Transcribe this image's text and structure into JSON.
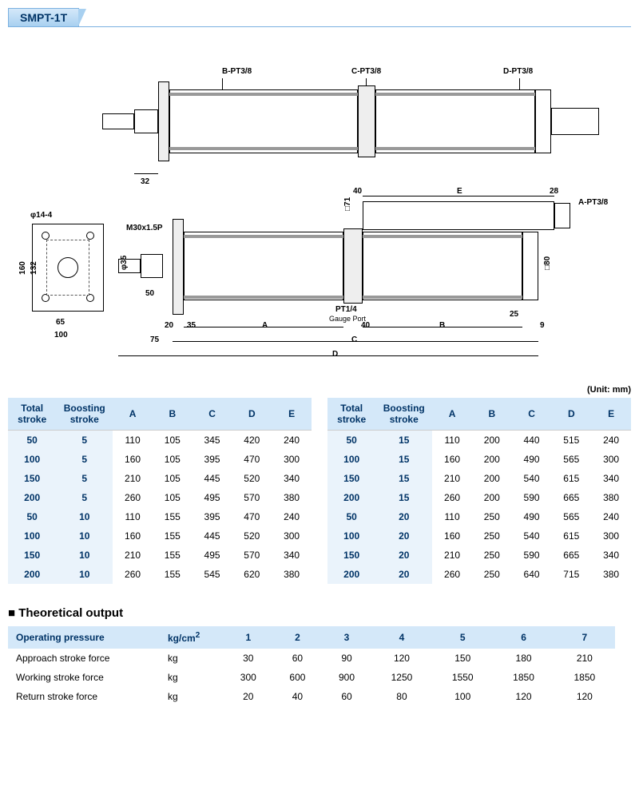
{
  "title": "SMPT-1T",
  "diagram": {
    "labels": {
      "b_port": "B-PT3/8",
      "c_port": "C-PT3/8",
      "d_port": "D-PT3/8",
      "a_port": "A-PT3/8",
      "gauge": "PT1/4",
      "gauge_sub": "Gauge Port",
      "thread": "M30x1.5P",
      "phi14": "φ14-4",
      "phi35": "φ35",
      "sq71": "□71",
      "sq80": "□80"
    },
    "dims": {
      "d32": "32",
      "d40a": "40",
      "d28": "28",
      "d40b": "40",
      "d25": "25",
      "d9": "9",
      "d20": "20",
      "d35": "35",
      "d50": "50",
      "d75": "75",
      "d65": "65",
      "d100": "100",
      "d160": "160",
      "d132": "132",
      "A": "A",
      "B": "B",
      "C": "C",
      "D": "D",
      "E": "E"
    }
  },
  "unit_label": "(Unit: mm)",
  "dim_headers": [
    "Total stroke",
    "Boosting stroke",
    "A",
    "B",
    "C",
    "D",
    "E"
  ],
  "dims_left": [
    [
      "50",
      "5",
      "110",
      "105",
      "345",
      "420",
      "240"
    ],
    [
      "100",
      "5",
      "160",
      "105",
      "395",
      "470",
      "300"
    ],
    [
      "150",
      "5",
      "210",
      "105",
      "445",
      "520",
      "340"
    ],
    [
      "200",
      "5",
      "260",
      "105",
      "495",
      "570",
      "380"
    ],
    [
      "50",
      "10",
      "110",
      "155",
      "395",
      "470",
      "240"
    ],
    [
      "100",
      "10",
      "160",
      "155",
      "445",
      "520",
      "300"
    ],
    [
      "150",
      "10",
      "210",
      "155",
      "495",
      "570",
      "340"
    ],
    [
      "200",
      "10",
      "260",
      "155",
      "545",
      "620",
      "380"
    ]
  ],
  "dims_right": [
    [
      "50",
      "15",
      "110",
      "200",
      "440",
      "515",
      "240"
    ],
    [
      "100",
      "15",
      "160",
      "200",
      "490",
      "565",
      "300"
    ],
    [
      "150",
      "15",
      "210",
      "200",
      "540",
      "615",
      "340"
    ],
    [
      "200",
      "15",
      "260",
      "200",
      "590",
      "665",
      "380"
    ],
    [
      "50",
      "20",
      "110",
      "250",
      "490",
      "565",
      "240"
    ],
    [
      "100",
      "20",
      "160",
      "250",
      "540",
      "615",
      "300"
    ],
    [
      "150",
      "20",
      "210",
      "250",
      "590",
      "665",
      "340"
    ],
    [
      "200",
      "20",
      "260",
      "250",
      "640",
      "715",
      "380"
    ]
  ],
  "output_section_title": "Theoretical output",
  "output_pressure_label": "Operating pressure",
  "output_pressure_unit": "kg/cm²",
  "output_cols": [
    "1",
    "2",
    "3",
    "4",
    "5",
    "6",
    "7"
  ],
  "output_rows": [
    {
      "label": "Approach stroke force",
      "unit": "kg",
      "vals": [
        "30",
        "60",
        "90",
        "120",
        "150",
        "180",
        "210"
      ]
    },
    {
      "label": "Working stroke force",
      "unit": "kg",
      "vals": [
        "300",
        "600",
        "900",
        "1250",
        "1550",
        "1850",
        "1850"
      ]
    },
    {
      "label": "Return stroke force",
      "unit": "kg",
      "vals": [
        "20",
        "40",
        "60",
        "80",
        "100",
        "120",
        "120"
      ]
    }
  ],
  "colors": {
    "header_bg": "#d4e8f9",
    "header_fg": "#003366",
    "rowhdr_bg": "#eaf3fb"
  }
}
